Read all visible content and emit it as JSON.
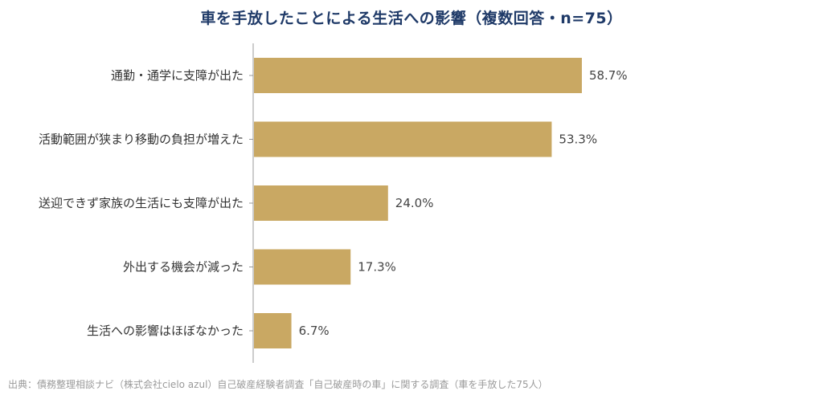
{
  "chart_data": {
    "type": "bar",
    "orientation": "horizontal",
    "title": "車を手放したことによる生活への影響（複数回答・n=75）",
    "categories": [
      "通勤・通学に支障が出た",
      "活動範囲が狭まり移動の負担が増えた",
      "送迎できず家族の生活にも支障が出た",
      "外出する機会が減った",
      "生活への影響はほぼなかった"
    ],
    "values": [
      58.7,
      53.3,
      24.0,
      17.3,
      6.7
    ],
    "value_labels": [
      "58.7%",
      "53.3%",
      "24.0%",
      "17.3%",
      "6.7%"
    ],
    "unit": "%",
    "xlim": [
      0,
      100
    ],
    "grid": false,
    "legend": "none",
    "bar_color": "#c9a863",
    "axis_color": "#999999"
  },
  "source_text": "出典：債務整理相談ナビ（株式会社cielo azul）自己破産経験者調査「自己破産時の車」に関する調査（車を手放した75人）",
  "colors": {
    "title": "#1f3a68",
    "bar": "#c9a863",
    "text": "#333333",
    "source": "#9a9a9a"
  }
}
